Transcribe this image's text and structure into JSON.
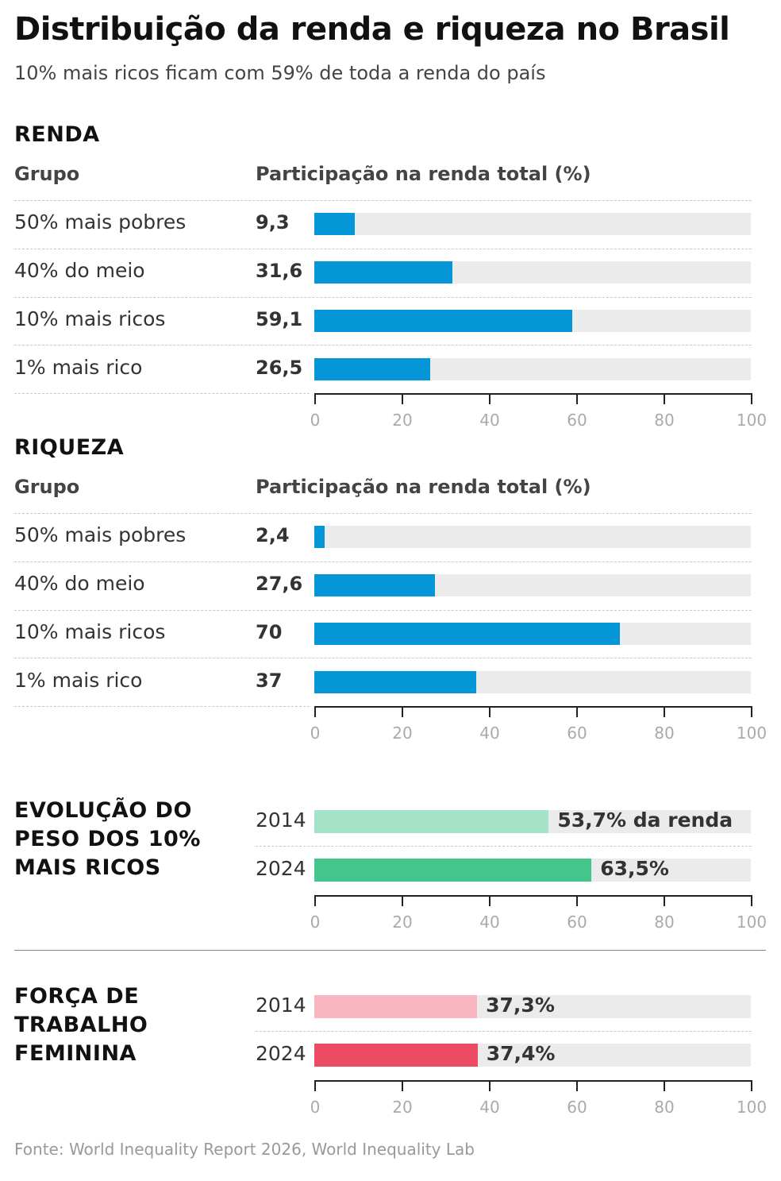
{
  "header": {
    "title": "Distribuição da renda e riqueza no Brasil",
    "subtitle": "10% mais ricos ficam com 59% de toda a renda do país"
  },
  "chart_data": [
    {
      "type": "bar",
      "title": "RENDA",
      "column_headers": [
        "Grupo",
        "Participação na renda total (%)"
      ],
      "categories": [
        "50% mais pobres",
        "40% do meio",
        "10% mais ricos",
        "1% mais rico"
      ],
      "values": [
        9.3,
        31.6,
        59.1,
        26.5
      ],
      "value_labels": [
        "9,3",
        "31,6",
        "59,1",
        "26,5"
      ],
      "xlim": [
        0,
        100
      ],
      "ticks": [
        "0",
        "20",
        "40",
        "60",
        "80",
        "100"
      ],
      "colors": [
        "#0596d8",
        "#0596d8",
        "#0596d8",
        "#0596d8"
      ]
    },
    {
      "type": "bar",
      "title": "RIQUEZA",
      "column_headers": [
        "Grupo",
        "Participação na renda total (%)"
      ],
      "categories": [
        "50% mais pobres",
        "40% do meio",
        "10% mais ricos",
        "1% mais rico"
      ],
      "values": [
        2.4,
        27.6,
        70,
        37
      ],
      "value_labels": [
        "2,4",
        "27,6",
        "70",
        "37"
      ],
      "xlim": [
        0,
        100
      ],
      "ticks": [
        "0",
        "20",
        "40",
        "60",
        "80",
        "100"
      ],
      "colors": [
        "#0596d8",
        "#0596d8",
        "#0596d8",
        "#0596d8"
      ]
    },
    {
      "type": "bar",
      "title": "EVOLUÇÃO DO PESO DOS 10% MAIS RICOS",
      "title_lines": [
        "EVOLUÇÃO DO",
        "PESO DOS 10%",
        "MAIS RICOS"
      ],
      "categories": [
        "2014",
        "2024"
      ],
      "values": [
        53.7,
        63.5
      ],
      "value_labels": [
        "53,7% da renda",
        "63,5%"
      ],
      "xlim": [
        0,
        100
      ],
      "ticks": [
        "0",
        "20",
        "40",
        "60",
        "80",
        "100"
      ],
      "colors": [
        "#a5e3c8",
        "#44c58c"
      ]
    },
    {
      "type": "bar",
      "title": "FORÇA DE TRABALHO FEMININA",
      "title_lines": [
        "FORÇA DE",
        "TRABALHO",
        "FEMININA"
      ],
      "categories": [
        "2014",
        "2024"
      ],
      "values": [
        37.3,
        37.4
      ],
      "value_labels": [
        "37,3%",
        "37,4%"
      ],
      "xlim": [
        0,
        100
      ],
      "ticks": [
        "0",
        "20",
        "40",
        "60",
        "80",
        "100"
      ],
      "colors": [
        "#f7b6c0",
        "#ed4a63"
      ]
    }
  ],
  "footer": {
    "source": "Fonte: World Inequality Report 2026, World Inequality Lab"
  }
}
